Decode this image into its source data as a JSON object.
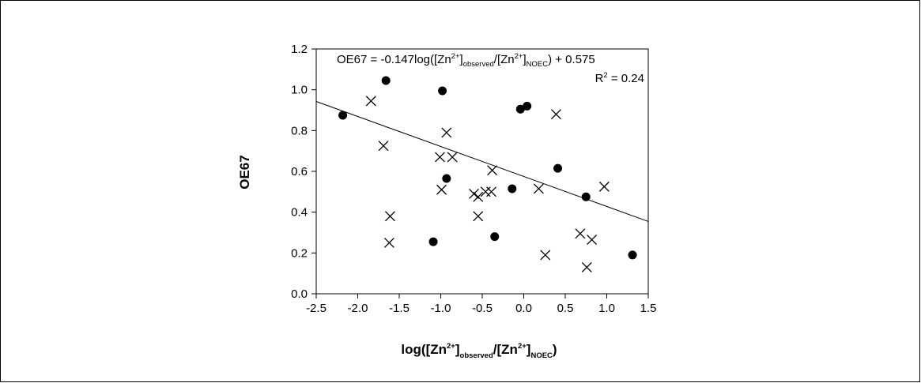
{
  "chart_data": {
    "type": "scatter",
    "title": "",
    "xlabel_parts": {
      "log": "log([Zn",
      "sup1": "2+",
      "mid1": "]",
      "sub1": "observed",
      "slash": "/[Zn",
      "sup2": "2+",
      "mid2": "]",
      "sub2": "NOEC",
      "close": ")"
    },
    "ylabel": "OE67",
    "xlim": [
      -2.5,
      1.5
    ],
    "ylim": [
      0.0,
      1.2
    ],
    "xticks": [
      "-2.5",
      "-2.0",
      "-1.5",
      "-1.0",
      "-0.5",
      "0.0",
      "0.5",
      "1.0",
      "1.5"
    ],
    "yticks": [
      "0.0",
      "0.2",
      "0.4",
      "0.6",
      "0.8",
      "1.0",
      "1.2"
    ],
    "grid": false,
    "regression": {
      "slope": -0.147,
      "intercept": 0.575,
      "equation_parts": {
        "lhs": "OE67 = -0.147log([Zn",
        "sup1": "2+",
        "mid1": "]",
        "sub1": "observed",
        "slash": "/[Zn",
        "sup2": "2+",
        "mid2": "]",
        "sub2": "NOEC",
        "tail": ") + 0.575"
      },
      "r2_parts": {
        "r": "R",
        "sup": "2",
        "rest": " = 0.24"
      }
    },
    "series": [
      {
        "marker": "circle",
        "x": [
          -2.18,
          -1.66,
          -0.98,
          -1.09,
          -0.93,
          -0.35,
          -0.14,
          -0.04,
          0.04,
          0.41,
          0.75,
          1.31
        ],
        "y": [
          0.875,
          1.045,
          0.995,
          0.255,
          0.565,
          0.28,
          0.515,
          0.905,
          0.92,
          0.615,
          0.475,
          0.19
        ]
      },
      {
        "marker": "cross",
        "x": [
          -1.84,
          -1.69,
          -1.61,
          -1.62,
          -1.01,
          -0.93,
          -0.86,
          -0.99,
          -0.6,
          -0.55,
          -0.55,
          -0.46,
          -0.39,
          -0.38,
          0.18,
          0.26,
          0.39,
          0.68,
          0.76,
          0.82,
          0.97
        ],
        "y": [
          0.945,
          0.725,
          0.38,
          0.25,
          0.67,
          0.79,
          0.67,
          0.51,
          0.49,
          0.38,
          0.475,
          0.5,
          0.5,
          0.605,
          0.515,
          0.19,
          0.88,
          0.295,
          0.13,
          0.265,
          0.525
        ]
      }
    ]
  }
}
